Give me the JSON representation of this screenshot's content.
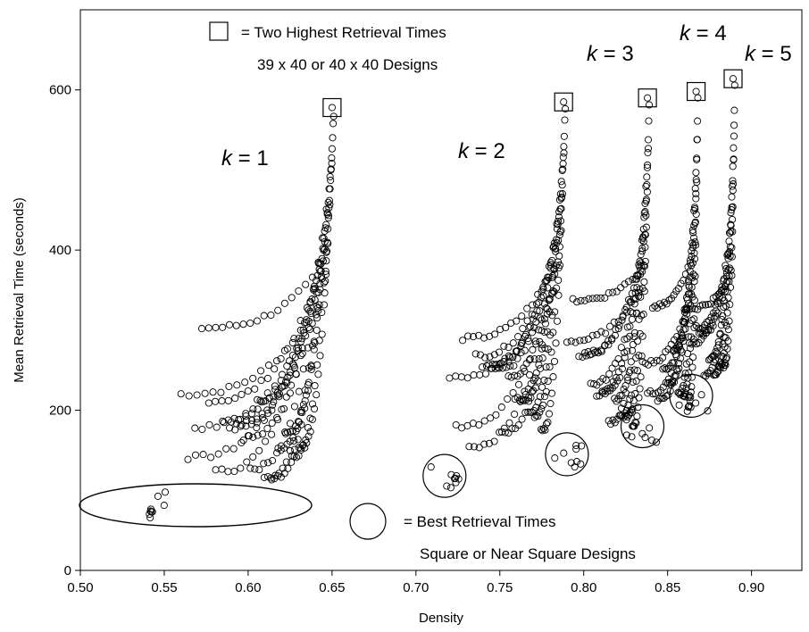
{
  "chart_data": {
    "type": "scatter",
    "title": "",
    "xlabel": "Density",
    "ylabel": "Mean Retrieval Time (seconds)",
    "xlim": [
      0.5,
      0.93
    ],
    "ylim": [
      0,
      700
    ],
    "x_ticks": [
      "0.50",
      "0.55",
      "0.60",
      "0.65",
      "0.70",
      "0.75",
      "0.80",
      "0.85",
      "0.90"
    ],
    "y_ticks": [
      "0",
      "200",
      "400",
      "600"
    ],
    "grid": false,
    "legend": [
      {
        "symbol": "square",
        "lines": [
          "= Two Highest Retrieval Times",
          "39 x 40 or 40 x 40 Designs"
        ]
      },
      {
        "symbol": "circle",
        "lines": [
          "= Best Retrieval Times",
          "Square or Near Square Designs"
        ]
      }
    ],
    "series": [
      {
        "k": "1",
        "label_k": "k",
        "label_rest": " = 1",
        "best": [
          0.55,
          80
        ],
        "peak": [
          0.65,
          578
        ],
        "edge_x": 0.651,
        "min_x": 0.56,
        "xspan": 0.09,
        "cap": 345,
        "n": 18
      },
      {
        "k": "2",
        "label_k": "k",
        "label_rest": " = 2",
        "best": [
          0.717,
          118
        ],
        "peak": [
          0.788,
          585
        ],
        "edge_x": 0.789,
        "min_x": 0.72,
        "xspan": 0.07,
        "cap": 360,
        "n": 15
      },
      {
        "k": "3",
        "label_k": "k",
        "label_rest": " = 3",
        "best": [
          0.79,
          145
        ],
        "peak": [
          0.838,
          590
        ],
        "edge_x": 0.839,
        "min_x": 0.79,
        "xspan": 0.05,
        "cap": 360,
        "n": 12
      },
      {
        "k": "4",
        "label_k": "k",
        "label_rest": " = 4",
        "best": [
          0.835,
          180
        ],
        "peak": [
          0.867,
          598
        ],
        "edge_x": 0.868,
        "min_x": 0.835,
        "xspan": 0.035,
        "cap": 360,
        "n": 10
      },
      {
        "k": "5",
        "label_k": "k",
        "label_rest": " = 5",
        "best": [
          0.864,
          218
        ],
        "peak": [
          0.889,
          614
        ],
        "edge_x": 0.89,
        "min_x": 0.86,
        "xspan": 0.03,
        "cap": 360,
        "n": 9
      }
    ]
  }
}
